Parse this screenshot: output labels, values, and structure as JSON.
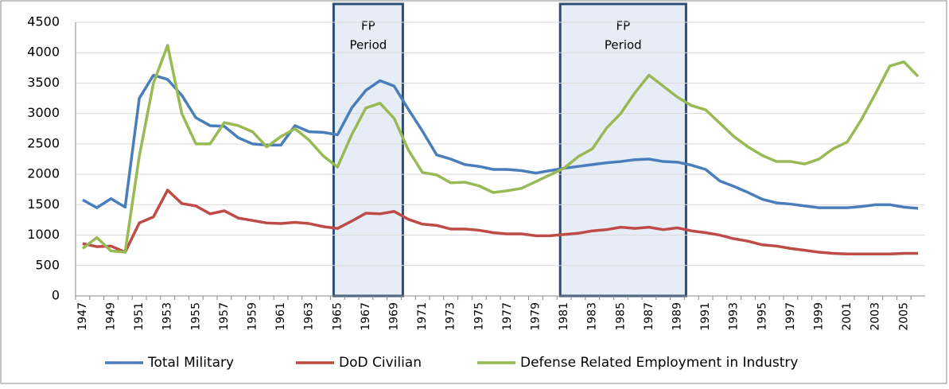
{
  "chart_data": {
    "type": "line",
    "categories": [
      "1947",
      null,
      "1949",
      null,
      "1951",
      null,
      "1953",
      null,
      "1955",
      null,
      "1957",
      null,
      "1959",
      null,
      "1961",
      null,
      "1963",
      null,
      "1965",
      null,
      "1967",
      null,
      "1969",
      null,
      "1971",
      null,
      "1973",
      null,
      "1975",
      null,
      "1977",
      null,
      "1979",
      null,
      "1981",
      null,
      "1983",
      null,
      "1985",
      null,
      "1987",
      null,
      "1989",
      null,
      "1991",
      null,
      "1993",
      null,
      "1995",
      null,
      "1997",
      null,
      "1999",
      null,
      "2001",
      null,
      "2003",
      null,
      "2005",
      null
    ],
    "series": [
      {
        "name": "Total Military",
        "color": "#4a7ebb",
        "values": [
          1580,
          1450,
          1600,
          1460,
          3250,
          3630,
          3560,
          3300,
          2930,
          2800,
          2790,
          2600,
          2500,
          2480,
          2480,
          2800,
          2700,
          2690,
          2650,
          3090,
          3380,
          3540,
          3450,
          3070,
          2710,
          2320,
          2250,
          2160,
          2130,
          2080,
          2080,
          2060,
          2020,
          2060,
          2100,
          2130,
          2160,
          2190,
          2210,
          2240,
          2250,
          2210,
          2200,
          2150,
          2080,
          1890,
          1800,
          1700,
          1590,
          1530,
          1510,
          1480,
          1450,
          1450,
          1450,
          1470,
          1500,
          1500,
          1460,
          1440
        ]
      },
      {
        "name": "DoD Civilian",
        "color": "#be4b48",
        "values": [
          860,
          810,
          820,
          720,
          1200,
          1300,
          1740,
          1520,
          1480,
          1350,
          1400,
          1280,
          1240,
          1200,
          1190,
          1210,
          1190,
          1140,
          1110,
          1230,
          1360,
          1350,
          1390,
          1260,
          1180,
          1160,
          1100,
          1100,
          1080,
          1040,
          1020,
          1020,
          990,
          990,
          1010,
          1030,
          1070,
          1090,
          1130,
          1110,
          1130,
          1090,
          1120,
          1070,
          1040,
          1000,
          940,
          900,
          840,
          820,
          780,
          750,
          720,
          700,
          690,
          690,
          690,
          690,
          700,
          700
        ]
      },
      {
        "name": "Defense Related Employment in Industry",
        "color": "#98b954",
        "values": [
          780,
          960,
          740,
          720,
          2300,
          3500,
          4120,
          3000,
          2500,
          2500,
          2850,
          2800,
          2700,
          2450,
          2620,
          2750,
          2560,
          2300,
          2120,
          2650,
          3090,
          3170,
          2920,
          2400,
          2030,
          1990,
          1860,
          1870,
          1810,
          1700,
          1730,
          1770,
          1880,
          1990,
          2100,
          2290,
          2420,
          2760,
          3000,
          3340,
          3630,
          3450,
          3270,
          3130,
          3060,
          2840,
          2620,
          2450,
          2310,
          2210,
          2210,
          2170,
          2250,
          2420,
          2530,
          2900,
          3330,
          3780,
          3850,
          3610
        ]
      }
    ],
    "ylim": [
      0,
      4500
    ],
    "yticks": [
      0,
      500,
      1000,
      1500,
      2000,
      2500,
      3000,
      3500,
      4000,
      4500
    ],
    "grid": true,
    "legend": "bottom",
    "annotations": [
      {
        "lines": [
          "FP",
          "Period"
        ],
        "from": "1965",
        "to": "1969"
      },
      {
        "lines": [
          "FP",
          "Period"
        ],
        "from": "1981",
        "to": "1989"
      }
    ]
  }
}
